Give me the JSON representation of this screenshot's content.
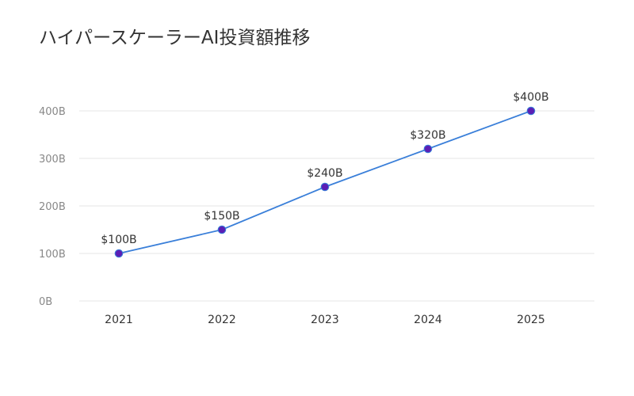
{
  "colors": {
    "background": "#ffffff",
    "line": "#3a7fd9",
    "marker_fill": "#5b1fb5",
    "marker_stroke": "#3a7fd9",
    "gridline": "#e6e6e6",
    "text": "#333333",
    "tick_text": "#888888"
  },
  "chart_data": {
    "type": "line",
    "title": "ハイパースケーラーAI投資額推移",
    "xlabel": "",
    "ylabel": "",
    "categories": [
      "2021",
      "2022",
      "2023",
      "2024",
      "2025"
    ],
    "series": [
      {
        "values": [
          100,
          150,
          240,
          320,
          400
        ],
        "data_labels": [
          "$100B",
          "$150B",
          "$240B",
          "$320B",
          "$400B"
        ]
      }
    ],
    "ylim": [
      0,
      400
    ],
    "yticks": [
      0,
      100,
      200,
      300,
      400
    ],
    "ytick_labels": [
      "0B",
      "100B",
      "200B",
      "300B",
      "400B"
    ],
    "grid": true,
    "legend": "none"
  }
}
